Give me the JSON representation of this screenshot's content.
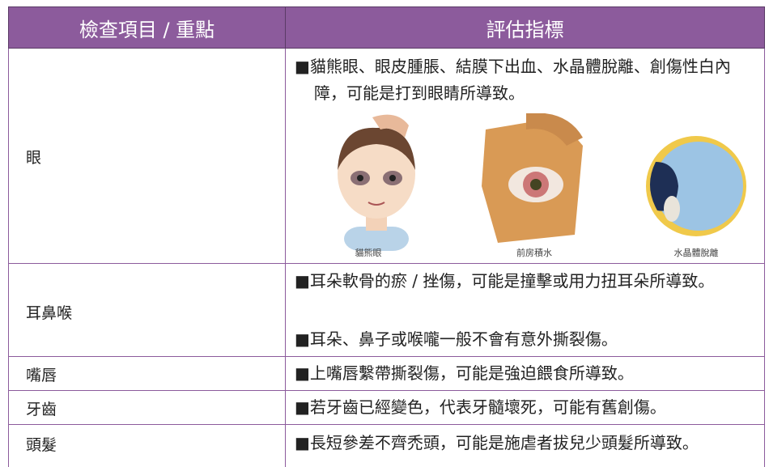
{
  "table": {
    "header": [
      "檢查項目 / 重點",
      "評估指標"
    ],
    "rows": [
      {
        "item": "眼",
        "notes": [
          "■貓熊眼、眼皮腫脹、結膜下出血、水晶體脫離、創傷性白內障，可能是打到眼睛所導致。"
        ],
        "captions": [
          "貓熊眼",
          "前房積水",
          "水晶體脫離"
        ]
      },
      {
        "item": "耳鼻喉",
        "notes": [
          "■耳朵軟骨的瘀 / 挫傷，可能是撞擊或用力扭耳朵所導致。",
          "■耳朵、鼻子或喉嚨一般不會有意外撕裂傷。"
        ]
      },
      {
        "item": "嘴唇",
        "notes": [
          "■上嘴唇繫帶撕裂傷，可能是強迫餵食所導致。"
        ]
      },
      {
        "item": "牙齒",
        "notes": [
          "■若牙齒已經變色，代表牙髓壞死，可能有舊創傷。"
        ]
      },
      {
        "item": "頭髮",
        "notes": [
          "■長短參差不齊禿頭，可能是施虐者拔兒少頭髮所導致。"
        ]
      }
    ]
  }
}
